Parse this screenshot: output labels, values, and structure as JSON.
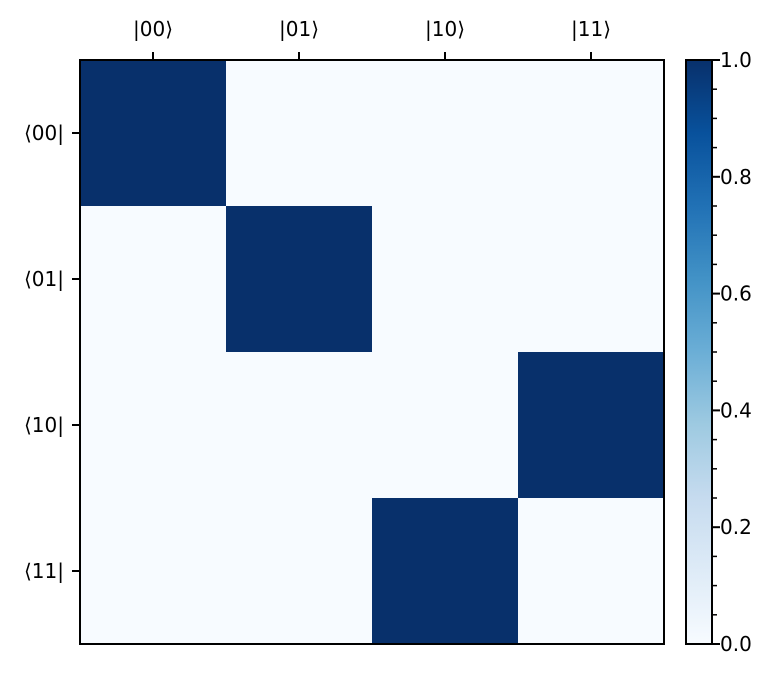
{
  "chart_data": {
    "type": "heatmap",
    "x_categories": [
      "|00⟩",
      "|01⟩",
      "|10⟩",
      "|11⟩"
    ],
    "y_categories": [
      "⟨00|",
      "⟨01|",
      "⟨10|",
      "⟨11|"
    ],
    "values": [
      [
        1,
        0,
        0,
        0
      ],
      [
        0,
        1,
        0,
        0
      ],
      [
        0,
        0,
        0,
        1
      ],
      [
        0,
        0,
        1,
        0
      ]
    ],
    "colormap": "Blues",
    "vmin": 0,
    "vmax": 1,
    "colorbar_ticks": [
      "0.0",
      "0.2",
      "0.4",
      "0.6",
      "0.8",
      "1.0"
    ],
    "colorbar_tick_values": [
      0,
      0.2,
      0.4,
      0.6,
      0.8,
      1.0
    ],
    "colors": {
      "low": "#f7fbff",
      "high": "#08306b"
    },
    "grid": false
  }
}
